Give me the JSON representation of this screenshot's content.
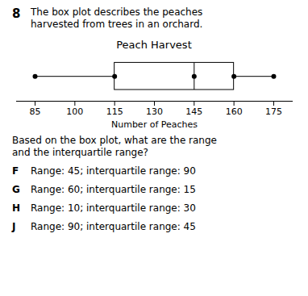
{
  "chart_data": {
    "type": "box",
    "title": "Peach Harvest",
    "xlabel": "Number of Peaches",
    "min": 85,
    "q1": 115,
    "median": 145,
    "q3": 160,
    "max": 175,
    "xlim": [
      78,
      182
    ],
    "xticks": [
      85,
      100,
      115,
      130,
      145,
      160,
      175
    ],
    "grid": false,
    "question_number": "8",
    "question_text": [
      "The box plot describes the peaches",
      "harvested from trees in an orchard."
    ],
    "follow_up": [
      "Based on the box plot, what are the range",
      "and the interquartile range?"
    ],
    "choices": [
      {
        "label": "F",
        "text": "Range: 45; interquartile range: 90"
      },
      {
        "label": "G",
        "text": "Range: 60; interquartile range: 15"
      },
      {
        "label": "H",
        "text": "Range: 10; interquartile range: 30"
      },
      {
        "label": "J",
        "text": "Range: 90; interquartile range: 45"
      }
    ]
  }
}
